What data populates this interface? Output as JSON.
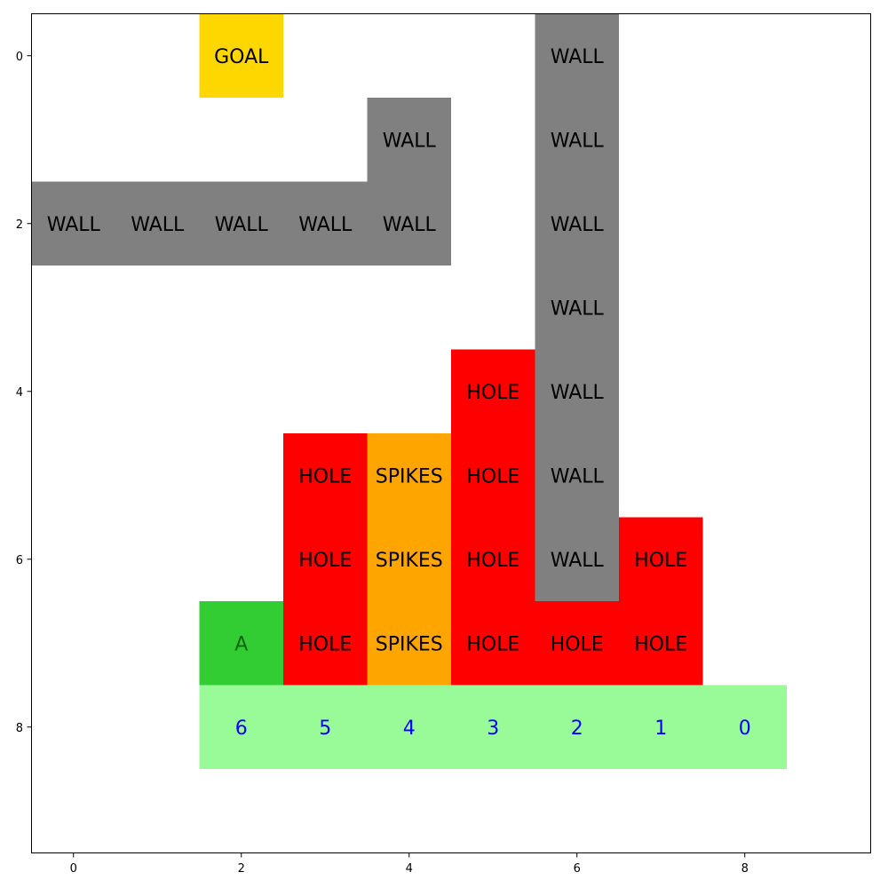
{
  "colors": {
    "wall": "#808080",
    "hole": "#ff0000",
    "spikes": "#ffa500",
    "goal": "#ffd700",
    "agent": "#32cd32",
    "trail": "#98fb98",
    "text": "#000000",
    "agent_text": "#006400",
    "trail_text": "#0000ff"
  },
  "grid": {
    "x_range": [
      -0.5,
      9.5
    ],
    "y_range": [
      -0.5,
      9.5
    ],
    "x_ticks": [
      "0",
      "2",
      "4",
      "6",
      "8"
    ],
    "y_ticks": [
      "0",
      "2",
      "4",
      "6",
      "8"
    ],
    "cells": [
      {
        "type": "goal",
        "label": "GOAL",
        "col": 2,
        "row": 0
      },
      {
        "type": "wall",
        "label": "WALL",
        "col": 6,
        "row": 0
      },
      {
        "type": "wall",
        "label": "WALL",
        "col": 4,
        "row": 1
      },
      {
        "type": "wall",
        "label": "WALL",
        "col": 6,
        "row": 1
      },
      {
        "type": "wall",
        "label": "WALL",
        "col": 0,
        "row": 2
      },
      {
        "type": "wall",
        "label": "WALL",
        "col": 1,
        "row": 2
      },
      {
        "type": "wall",
        "label": "WALL",
        "col": 2,
        "row": 2
      },
      {
        "type": "wall",
        "label": "WALL",
        "col": 3,
        "row": 2
      },
      {
        "type": "wall",
        "label": "WALL",
        "col": 4,
        "row": 2
      },
      {
        "type": "wall",
        "label": "WALL",
        "col": 6,
        "row": 2
      },
      {
        "type": "wall",
        "label": "WALL",
        "col": 6,
        "row": 3
      },
      {
        "type": "hole",
        "label": "HOLE",
        "col": 5,
        "row": 4
      },
      {
        "type": "wall",
        "label": "WALL",
        "col": 6,
        "row": 4
      },
      {
        "type": "hole",
        "label": "HOLE",
        "col": 3,
        "row": 5
      },
      {
        "type": "spikes",
        "label": "SPIKES",
        "col": 4,
        "row": 5
      },
      {
        "type": "hole",
        "label": "HOLE",
        "col": 5,
        "row": 5
      },
      {
        "type": "wall",
        "label": "WALL",
        "col": 6,
        "row": 5
      },
      {
        "type": "hole",
        "label": "HOLE",
        "col": 3,
        "row": 6
      },
      {
        "type": "spikes",
        "label": "SPIKES",
        "col": 4,
        "row": 6
      },
      {
        "type": "hole",
        "label": "HOLE",
        "col": 5,
        "row": 6
      },
      {
        "type": "wall",
        "label": "WALL",
        "col": 6,
        "row": 6
      },
      {
        "type": "hole",
        "label": "HOLE",
        "col": 7,
        "row": 6
      },
      {
        "type": "agent",
        "label": "A",
        "col": 2,
        "row": 7
      },
      {
        "type": "hole",
        "label": "HOLE",
        "col": 3,
        "row": 7
      },
      {
        "type": "spikes",
        "label": "SPIKES",
        "col": 4,
        "row": 7
      },
      {
        "type": "hole",
        "label": "HOLE",
        "col": 5,
        "row": 7
      },
      {
        "type": "hole",
        "label": "HOLE",
        "col": 6,
        "row": 7
      },
      {
        "type": "hole",
        "label": "HOLE",
        "col": 7,
        "row": 7
      },
      {
        "type": "trail",
        "label": "6",
        "col": 2,
        "row": 8
      },
      {
        "type": "trail",
        "label": "5",
        "col": 3,
        "row": 8
      },
      {
        "type": "trail",
        "label": "4",
        "col": 4,
        "row": 8
      },
      {
        "type": "trail",
        "label": "3",
        "col": 5,
        "row": 8
      },
      {
        "type": "trail",
        "label": "2",
        "col": 6,
        "row": 8
      },
      {
        "type": "trail",
        "label": "1",
        "col": 7,
        "row": 8
      },
      {
        "type": "trail",
        "label": "0",
        "col": 8,
        "row": 8
      }
    ]
  }
}
